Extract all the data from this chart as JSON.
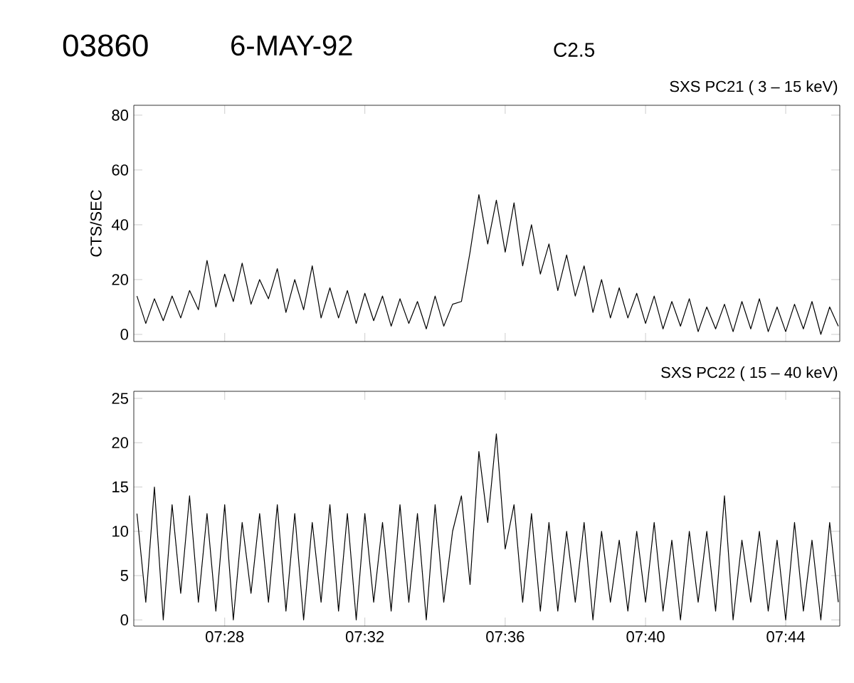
{
  "chart_data": [
    {
      "type": "line",
      "title": "SXS PC21  (  3 – 15 keV)",
      "ylabel": "CTS/SEC",
      "annotations": [
        "03860",
        "6-MAY-92",
        "C2.5"
      ],
      "x": [
        7.425,
        7.4292,
        7.4333,
        7.4375,
        7.4417,
        7.4458,
        7.45,
        7.4542,
        7.4583,
        7.4625,
        7.4667,
        7.4708,
        7.475,
        7.4792,
        7.4833,
        7.4875,
        7.4917,
        7.4958,
        7.5,
        7.5042,
        7.5083,
        7.5125,
        7.5167,
        7.5208,
        7.525,
        7.5292,
        7.5333,
        7.5375,
        7.5417,
        7.5458,
        7.55,
        7.5542,
        7.5583,
        7.5625,
        7.5667,
        7.5708,
        7.575,
        7.5792,
        7.5833,
        7.5875,
        7.5917,
        7.5958,
        7.6,
        7.6042,
        7.6083,
        7.6125,
        7.6167,
        7.6208,
        7.625,
        7.6292,
        7.6333,
        7.6375,
        7.6417,
        7.6458,
        7.65,
        7.6542,
        7.6583,
        7.6625,
        7.6667,
        7.6708,
        7.675,
        7.6792,
        7.6833,
        7.6875,
        7.6917,
        7.6958,
        7.7,
        7.7042,
        7.7083,
        7.7125,
        7.7167,
        7.7208,
        7.725,
        7.7292,
        7.7333,
        7.7375,
        7.7417,
        7.7458,
        7.75,
        7.7542,
        7.7583
      ],
      "series": [
        {
          "color": "#000000",
          "values": [
            14,
            4,
            13,
            5,
            14,
            6,
            16,
            9,
            27,
            10,
            22,
            12,
            26,
            11,
            20,
            13,
            24,
            8,
            20,
            9,
            25,
            6,
            17,
            6,
            16,
            4,
            15,
            5,
            14,
            3,
            13,
            4,
            12,
            2,
            14,
            3,
            11,
            12,
            30,
            51,
            33,
            49,
            30,
            48,
            25,
            40,
            22,
            33,
            16,
            29,
            14,
            25,
            8,
            20,
            6,
            17,
            6,
            15,
            4,
            14,
            2,
            12,
            3,
            13,
            1,
            10,
            2,
            11,
            1,
            12,
            2,
            13,
            1,
            10,
            1,
            11,
            2,
            12,
            0,
            10,
            3
          ]
        }
      ],
      "xlim": [
        7.4235,
        7.759
      ],
      "ylim": [
        -2.6,
        83.6
      ],
      "xticks": [
        {
          "value": 7.4667,
          "label": null
        },
        {
          "value": 7.5333,
          "label": null
        },
        {
          "value": 7.6,
          "label": null
        },
        {
          "value": 7.6667,
          "label": null
        },
        {
          "value": 7.7333,
          "label": null
        }
      ],
      "yticks": [
        0,
        20,
        40,
        60,
        80
      ],
      "tick_labels": "y",
      "line_style": "solid",
      "marker": "none"
    },
    {
      "type": "line",
      "title": "SXS PC22  ( 15 – 40 keV)",
      "x": [
        7.425,
        7.4292,
        7.4333,
        7.4375,
        7.4417,
        7.4458,
        7.45,
        7.4542,
        7.4583,
        7.4625,
        7.4667,
        7.4708,
        7.475,
        7.4792,
        7.4833,
        7.4875,
        7.4917,
        7.4958,
        7.5,
        7.5042,
        7.5083,
        7.5125,
        7.5167,
        7.5208,
        7.525,
        7.5292,
        7.5333,
        7.5375,
        7.5417,
        7.5458,
        7.55,
        7.5542,
        7.5583,
        7.5625,
        7.5667,
        7.5708,
        7.575,
        7.5792,
        7.5833,
        7.5875,
        7.5917,
        7.5958,
        7.6,
        7.6042,
        7.6083,
        7.6125,
        7.6167,
        7.6208,
        7.625,
        7.6292,
        7.6333,
        7.6375,
        7.6417,
        7.6458,
        7.65,
        7.6542,
        7.6583,
        7.6625,
        7.6667,
        7.6708,
        7.675,
        7.6792,
        7.6833,
        7.6875,
        7.6917,
        7.6958,
        7.7,
        7.7042,
        7.7083,
        7.7125,
        7.7167,
        7.7208,
        7.725,
        7.7292,
        7.7333,
        7.7375,
        7.7417,
        7.7458,
        7.75,
        7.7542,
        7.7583
      ],
      "series": [
        {
          "color": "#000000",
          "values": [
            12,
            2,
            15,
            0,
            13,
            3,
            14,
            2,
            12,
            1,
            13,
            0,
            11,
            3,
            12,
            2,
            13,
            1,
            12,
            0,
            11,
            2,
            13,
            1,
            12,
            0,
            12,
            2,
            11,
            1,
            13,
            2,
            12,
            0,
            13,
            2,
            10,
            14,
            4,
            19,
            11,
            21,
            8,
            13,
            2,
            12,
            1,
            11,
            1,
            10,
            2,
            11,
            0,
            10,
            2,
            9,
            1,
            10,
            2,
            11,
            1,
            9,
            0,
            10,
            2,
            10,
            1,
            14,
            0,
            9,
            2,
            10,
            1,
            9,
            0,
            11,
            1,
            9,
            0,
            11,
            2
          ]
        }
      ],
      "xlim": [
        7.4235,
        7.759
      ],
      "ylim": [
        -0.7,
        25.8
      ],
      "xticks": [
        {
          "value": 7.4667,
          "label": "07:28"
        },
        {
          "value": 7.5333,
          "label": "07:32"
        },
        {
          "value": 7.6,
          "label": "07:36"
        },
        {
          "value": 7.6667,
          "label": "07:40"
        },
        {
          "value": 7.7333,
          "label": "07:44"
        }
      ],
      "yticks": [
        0,
        5,
        10,
        15,
        20,
        25
      ],
      "line_style": "solid",
      "marker": "none"
    }
  ]
}
